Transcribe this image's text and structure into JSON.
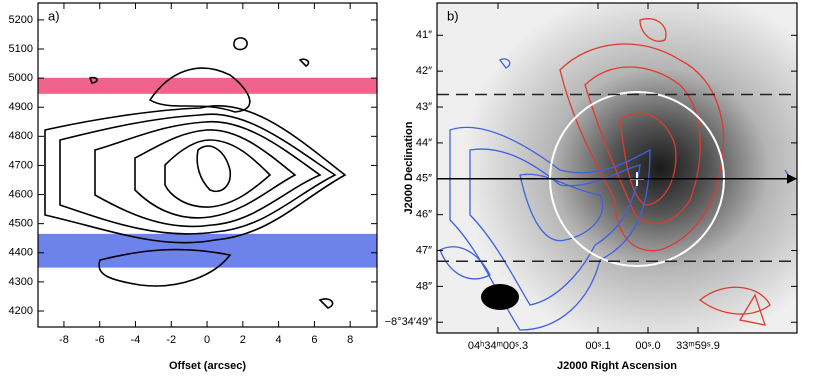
{
  "chart_data": [
    {
      "type": "contour",
      "annotation": "a)",
      "xlabel": "Offset (arcsec)",
      "xlim": [
        -9.45,
        9.5
      ],
      "xticks": [
        -8,
        -6,
        -4,
        -2,
        0,
        2,
        4,
        6,
        8
      ],
      "ylim": [
        4145,
        5258
      ],
      "yticks": [
        4200,
        4300,
        4400,
        4500,
        4600,
        4700,
        4800,
        4900,
        5000,
        5100,
        5200
      ],
      "bands": [
        {
          "from": 4946,
          "to": 5001,
          "color": "#f0648c"
        },
        {
          "from": 4349,
          "to": 4465,
          "color": "#6e82eb"
        }
      ]
    },
    {
      "type": "contour",
      "annotation": "b)",
      "xlabel": "J2000 Right Ascension",
      "ylabel": "J2000 Declination",
      "xlim": [
        0.422,
        -0.298
      ],
      "xticks": [
        {
          "value": 0.3,
          "label": "04ʰ34ᵐ00ˢ.3"
        },
        {
          "value": 0.1,
          "label": "00ˢ.1"
        },
        {
          "value": 0.0,
          "label": "00ˢ.0"
        },
        {
          "value": -0.1,
          "label": "33ᵐ59ˢ.9"
        }
      ],
      "ylim": [
        49.3,
        40.1
      ],
      "yticks": [
        {
          "value": 41,
          "label": "41″"
        },
        {
          "value": 42,
          "label": "42″"
        },
        {
          "value": 43,
          "label": "43″"
        },
        {
          "value": 44,
          "label": "44″"
        },
        {
          "value": 45,
          "label": "45″"
        },
        {
          "value": 46,
          "label": "46″"
        },
        {
          "value": 47,
          "label": "47″"
        },
        {
          "value": 48,
          "label": "48″"
        },
        {
          "value": 49,
          "label": "−8°34′49″"
        }
      ],
      "dashed_lines": [
        42.65,
        47.3
      ],
      "arrow_y": 45
    }
  ]
}
